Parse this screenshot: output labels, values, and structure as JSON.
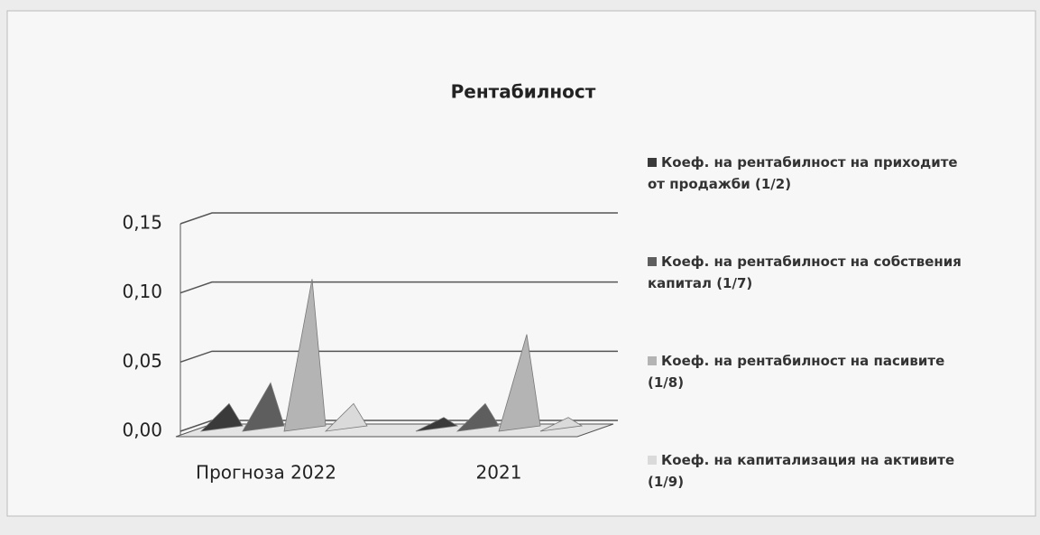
{
  "chart_data": {
    "type": "bar",
    "title": "Рентабилност",
    "categories": [
      "Прогноза 2022",
      "2021"
    ],
    "series": [
      {
        "name": "Коеф. на рентабилност на приходите от продажби (1/2)",
        "color": "#3a3a3a",
        "values": [
          0.02,
          0.01
        ]
      },
      {
        "name": "Коеф. на рентабилност на собствения капитал (1/7)",
        "color": "#5e5e5e",
        "values": [
          0.035,
          0.02
        ]
      },
      {
        "name": "Коеф. на рентабилност на пасивите (1/8)",
        "color": "#b4b4b4",
        "values": [
          0.11,
          0.07
        ]
      },
      {
        "name": "Коеф. на капитализация на активите (1/9)",
        "color": "#dadada",
        "values": [
          0.02,
          0.01
        ]
      }
    ],
    "ylim": [
      0,
      0.15
    ],
    "yticks": [
      {
        "value": 0,
        "label": "0,00"
      },
      {
        "value": 0.05,
        "label": "0,05"
      },
      {
        "value": 0.1,
        "label": "0,10"
      },
      {
        "value": 0.15,
        "label": "0,15"
      }
    ],
    "grid": true,
    "legend": "right"
  }
}
